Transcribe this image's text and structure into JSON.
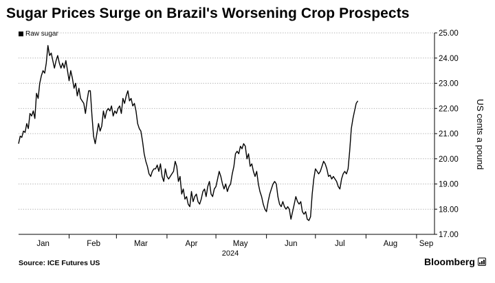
{
  "chart_data": {
    "type": "line",
    "title": "Sugar Prices Surge on Brazil's Worsening Crop Prospects",
    "ylabel": "US cents a pound",
    "xlabel": "2024",
    "ylim": [
      17.0,
      25.0
    ],
    "y_ticks": [
      17.0,
      18.0,
      19.0,
      20.0,
      21.0,
      22.0,
      23.0,
      24.0,
      25.0
    ],
    "y_tick_labels": [
      "17.00",
      "18.00",
      "19.00",
      "20.00",
      "21.00",
      "22.00",
      "23.00",
      "24.00",
      "25.00"
    ],
    "x_range_days": [
      0,
      255
    ],
    "month_ticks": [
      {
        "label": "Jan",
        "day": 15
      },
      {
        "label": "Feb",
        "day": 46
      },
      {
        "label": "Mar",
        "day": 75
      },
      {
        "label": "Apr",
        "day": 106
      },
      {
        "label": "May",
        "day": 136
      },
      {
        "label": "Jun",
        "day": 167
      },
      {
        "label": "Jul",
        "day": 197
      },
      {
        "label": "Aug",
        "day": 228
      },
      {
        "label": "Sep",
        "day": 259
      }
    ],
    "month_boundaries": [
      31,
      60,
      91,
      121,
      152,
      182,
      213,
      244
    ],
    "series": [
      {
        "name": "Raw sugar",
        "color": "#000000",
        "points": [
          [
            0,
            20.6
          ],
          [
            1,
            20.9
          ],
          [
            2,
            20.85
          ],
          [
            3,
            21.1
          ],
          [
            4,
            21.05
          ],
          [
            5,
            21.4
          ],
          [
            6,
            21.2
          ],
          [
            7,
            21.8
          ],
          [
            8,
            21.7
          ],
          [
            9,
            21.9
          ],
          [
            10,
            21.6
          ],
          [
            11,
            22.6
          ],
          [
            12,
            22.4
          ],
          [
            13,
            23.0
          ],
          [
            14,
            23.3
          ],
          [
            15,
            23.5
          ],
          [
            16,
            23.4
          ],
          [
            17,
            23.8
          ],
          [
            18,
            24.5
          ],
          [
            19,
            24.1
          ],
          [
            20,
            24.2
          ],
          [
            21,
            23.9
          ],
          [
            22,
            23.6
          ],
          [
            23,
            23.9
          ],
          [
            24,
            24.1
          ],
          [
            25,
            23.8
          ],
          [
            26,
            23.6
          ],
          [
            27,
            23.8
          ],
          [
            28,
            23.6
          ],
          [
            29,
            23.9
          ],
          [
            30,
            23.5
          ],
          [
            31,
            23.1
          ],
          [
            32,
            23.5
          ],
          [
            33,
            23.2
          ],
          [
            34,
            22.8
          ],
          [
            35,
            23.0
          ],
          [
            36,
            22.5
          ],
          [
            37,
            22.8
          ],
          [
            38,
            22.4
          ],
          [
            39,
            22.3
          ],
          [
            40,
            22.2
          ],
          [
            41,
            21.8
          ],
          [
            42,
            22.3
          ],
          [
            43,
            22.7
          ],
          [
            44,
            22.7
          ],
          [
            45,
            21.7
          ],
          [
            46,
            20.9
          ],
          [
            47,
            20.6
          ],
          [
            48,
            21.0
          ],
          [
            49,
            21.4
          ],
          [
            50,
            21.1
          ],
          [
            51,
            21.3
          ],
          [
            52,
            21.9
          ],
          [
            53,
            21.6
          ],
          [
            54,
            21.9
          ],
          [
            55,
            22.0
          ],
          [
            56,
            21.9
          ],
          [
            57,
            22.1
          ],
          [
            58,
            21.7
          ],
          [
            59,
            21.9
          ],
          [
            60,
            21.8
          ],
          [
            61,
            22.0
          ],
          [
            62,
            22.1
          ],
          [
            63,
            21.8
          ],
          [
            64,
            22.4
          ],
          [
            65,
            22.2
          ],
          [
            66,
            22.5
          ],
          [
            67,
            22.7
          ],
          [
            68,
            22.3
          ],
          [
            69,
            22.4
          ],
          [
            70,
            22.1
          ],
          [
            71,
            22.2
          ],
          [
            72,
            21.9
          ],
          [
            73,
            21.4
          ],
          [
            74,
            21.2
          ],
          [
            75,
            21.1
          ],
          [
            76,
            20.7
          ],
          [
            77,
            20.2
          ],
          [
            78,
            19.9
          ],
          [
            79,
            19.7
          ],
          [
            80,
            19.4
          ],
          [
            81,
            19.3
          ],
          [
            82,
            19.5
          ],
          [
            83,
            19.6
          ],
          [
            84,
            19.6
          ],
          [
            85,
            19.75
          ],
          [
            86,
            19.5
          ],
          [
            87,
            19.8
          ],
          [
            88,
            19.3
          ],
          [
            89,
            19.1
          ],
          [
            90,
            19.6
          ],
          [
            91,
            19.3
          ],
          [
            92,
            19.2
          ],
          [
            93,
            19.3
          ],
          [
            94,
            19.4
          ],
          [
            95,
            19.5
          ],
          [
            96,
            19.9
          ],
          [
            97,
            19.7
          ],
          [
            98,
            19.1
          ],
          [
            99,
            19.3
          ],
          [
            100,
            18.6
          ],
          [
            101,
            18.8
          ],
          [
            102,
            18.4
          ],
          [
            103,
            18.5
          ],
          [
            104,
            18.2
          ],
          [
            105,
            18.1
          ],
          [
            106,
            18.7
          ],
          [
            107,
            18.3
          ],
          [
            108,
            18.5
          ],
          [
            109,
            18.6
          ],
          [
            110,
            18.3
          ],
          [
            111,
            18.2
          ],
          [
            112,
            18.4
          ],
          [
            113,
            18.7
          ],
          [
            114,
            18.8
          ],
          [
            115,
            18.5
          ],
          [
            116,
            18.9
          ],
          [
            117,
            19.1
          ],
          [
            118,
            18.6
          ],
          [
            119,
            18.5
          ],
          [
            120,
            18.8
          ],
          [
            121,
            18.9
          ],
          [
            122,
            19.2
          ],
          [
            123,
            19.5
          ],
          [
            124,
            19.3
          ],
          [
            125,
            19.0
          ],
          [
            126,
            18.8
          ],
          [
            127,
            19.0
          ],
          [
            128,
            18.7
          ],
          [
            129,
            18.9
          ],
          [
            130,
            19.0
          ],
          [
            131,
            19.4
          ],
          [
            132,
            19.7
          ],
          [
            133,
            20.2
          ],
          [
            134,
            20.3
          ],
          [
            135,
            20.2
          ],
          [
            136,
            20.5
          ],
          [
            137,
            20.4
          ],
          [
            138,
            20.6
          ],
          [
            139,
            20.5
          ],
          [
            140,
            20.0
          ],
          [
            141,
            20.2
          ],
          [
            142,
            19.7
          ],
          [
            143,
            19.8
          ],
          [
            144,
            19.5
          ],
          [
            145,
            19.3
          ],
          [
            146,
            19.5
          ],
          [
            147,
            19.0
          ],
          [
            148,
            18.7
          ],
          [
            149,
            18.5
          ],
          [
            150,
            18.2
          ],
          [
            151,
            18.0
          ],
          [
            152,
            17.9
          ],
          [
            153,
            18.3
          ],
          [
            154,
            18.6
          ],
          [
            155,
            18.8
          ],
          [
            156,
            19.0
          ],
          [
            157,
            19.1
          ],
          [
            158,
            19.0
          ],
          [
            159,
            18.5
          ],
          [
            160,
            18.2
          ],
          [
            161,
            18.1
          ],
          [
            162,
            18.3
          ],
          [
            163,
            18.1
          ],
          [
            164,
            18.0
          ],
          [
            165,
            18.1
          ],
          [
            166,
            18.0
          ],
          [
            167,
            17.6
          ],
          [
            168,
            17.9
          ],
          [
            169,
            18.2
          ],
          [
            170,
            18.5
          ],
          [
            171,
            18.3
          ],
          [
            172,
            18.2
          ],
          [
            173,
            18.3
          ],
          [
            174,
            17.9
          ],
          [
            175,
            17.8
          ],
          [
            176,
            17.9
          ],
          [
            177,
            17.6
          ],
          [
            178,
            17.55
          ],
          [
            179,
            17.7
          ],
          [
            180,
            18.6
          ],
          [
            181,
            19.2
          ],
          [
            182,
            19.6
          ],
          [
            183,
            19.5
          ],
          [
            184,
            19.4
          ],
          [
            185,
            19.5
          ],
          [
            186,
            19.7
          ],
          [
            187,
            19.9
          ],
          [
            188,
            19.8
          ],
          [
            189,
            19.6
          ],
          [
            190,
            19.3
          ],
          [
            191,
            19.35
          ],
          [
            192,
            19.2
          ],
          [
            193,
            19.3
          ],
          [
            194,
            19.2
          ],
          [
            195,
            19.1
          ],
          [
            196,
            18.9
          ],
          [
            197,
            18.8
          ],
          [
            198,
            19.2
          ],
          [
            199,
            19.4
          ],
          [
            200,
            19.5
          ],
          [
            201,
            19.4
          ],
          [
            202,
            19.6
          ],
          [
            203,
            20.3
          ],
          [
            204,
            21.2
          ],
          [
            205,
            21.6
          ],
          [
            206,
            21.9
          ],
          [
            207,
            22.2
          ],
          [
            208,
            22.3
          ]
        ]
      }
    ]
  },
  "legend": {
    "label": "Raw sugar",
    "color": "#000000"
  },
  "source": "Source: ICE Futures US",
  "brand": "Bloomberg"
}
